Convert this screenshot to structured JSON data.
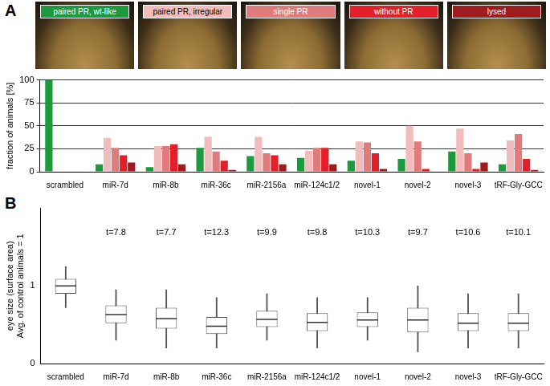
{
  "chart_data": [
    {
      "type": "bar",
      "title": "A",
      "y_label": "fraction of animals [%]",
      "categories": [
        "scrambled",
        "miR-7d",
        "miR-8b",
        "miR-36c",
        "miR-2156a",
        "miR-124c1/2",
        "novel-1",
        "novel-2",
        "novel-3",
        "tRF-Gly-GCC"
      ],
      "series": [
        {
          "name": "paired PR, wt-like",
          "color": "#1e9a3e",
          "values": [
            100,
            8,
            5,
            26,
            17,
            15,
            12,
            14,
            22,
            8
          ]
        },
        {
          "name": "paired PR, irregular",
          "color": "#f2bcbc",
          "values": [
            0,
            37,
            28,
            38,
            38,
            23,
            33,
            50,
            47,
            34
          ]
        },
        {
          "name": "single PR",
          "color": "#e07b7b",
          "values": [
            0,
            26,
            28,
            22,
            20,
            26,
            32,
            33,
            20,
            41
          ]
        },
        {
          "name": "without PR",
          "color": "#e3202a",
          "values": [
            0,
            18,
            30,
            12,
            18,
            26,
            20,
            3,
            3,
            14
          ]
        },
        {
          "name": "lysed",
          "color": "#9e1b1e",
          "values": [
            0,
            10,
            8,
            2,
            8,
            8,
            3,
            0,
            10,
            2
          ]
        }
      ],
      "ylim": [
        0,
        100
      ],
      "yticks": [
        0,
        25,
        50,
        75,
        100
      ],
      "grid": true,
      "legend": "top"
    },
    {
      "type": "box",
      "title": "B",
      "y_label": [
        "eye size (surface area)",
        "Avg. of control animals = 1"
      ],
      "categories": [
        "scrambled",
        "miR-7d",
        "miR-8b",
        "miR-36c",
        "miR-2156a",
        "miR-124c1/2",
        "novel-1",
        "novel-2",
        "novel-3",
        "tRF-Gly-GCC"
      ],
      "box": {
        "median": [
          1.0,
          0.63,
          0.58,
          0.48,
          0.57,
          0.53,
          0.56,
          0.56,
          0.52,
          0.52
        ],
        "q1": [
          0.9,
          0.52,
          0.45,
          0.38,
          0.47,
          0.42,
          0.47,
          0.4,
          0.42,
          0.42
        ],
        "q3": [
          1.09,
          0.75,
          0.72,
          0.6,
          0.68,
          0.65,
          0.66,
          0.72,
          0.65,
          0.65
        ],
        "whisker_low": [
          0.72,
          0.3,
          0.2,
          0.2,
          0.3,
          0.2,
          0.3,
          0.15,
          0.2,
          0.2
        ],
        "whisker_high": [
          1.25,
          0.95,
          0.95,
          0.85,
          0.9,
          0.85,
          0.85,
          1.0,
          0.9,
          0.9
        ]
      },
      "annotations": [
        null,
        "t=7.8",
        "t=7.7",
        "t=12.3",
        "t=9.9",
        "t=9.8",
        "t=10.3",
        "t=9.7",
        "t=10.6",
        "t=10.1"
      ],
      "ylim": [
        0,
        2
      ],
      "yticks": [
        0,
        1
      ],
      "grid": false
    }
  ]
}
